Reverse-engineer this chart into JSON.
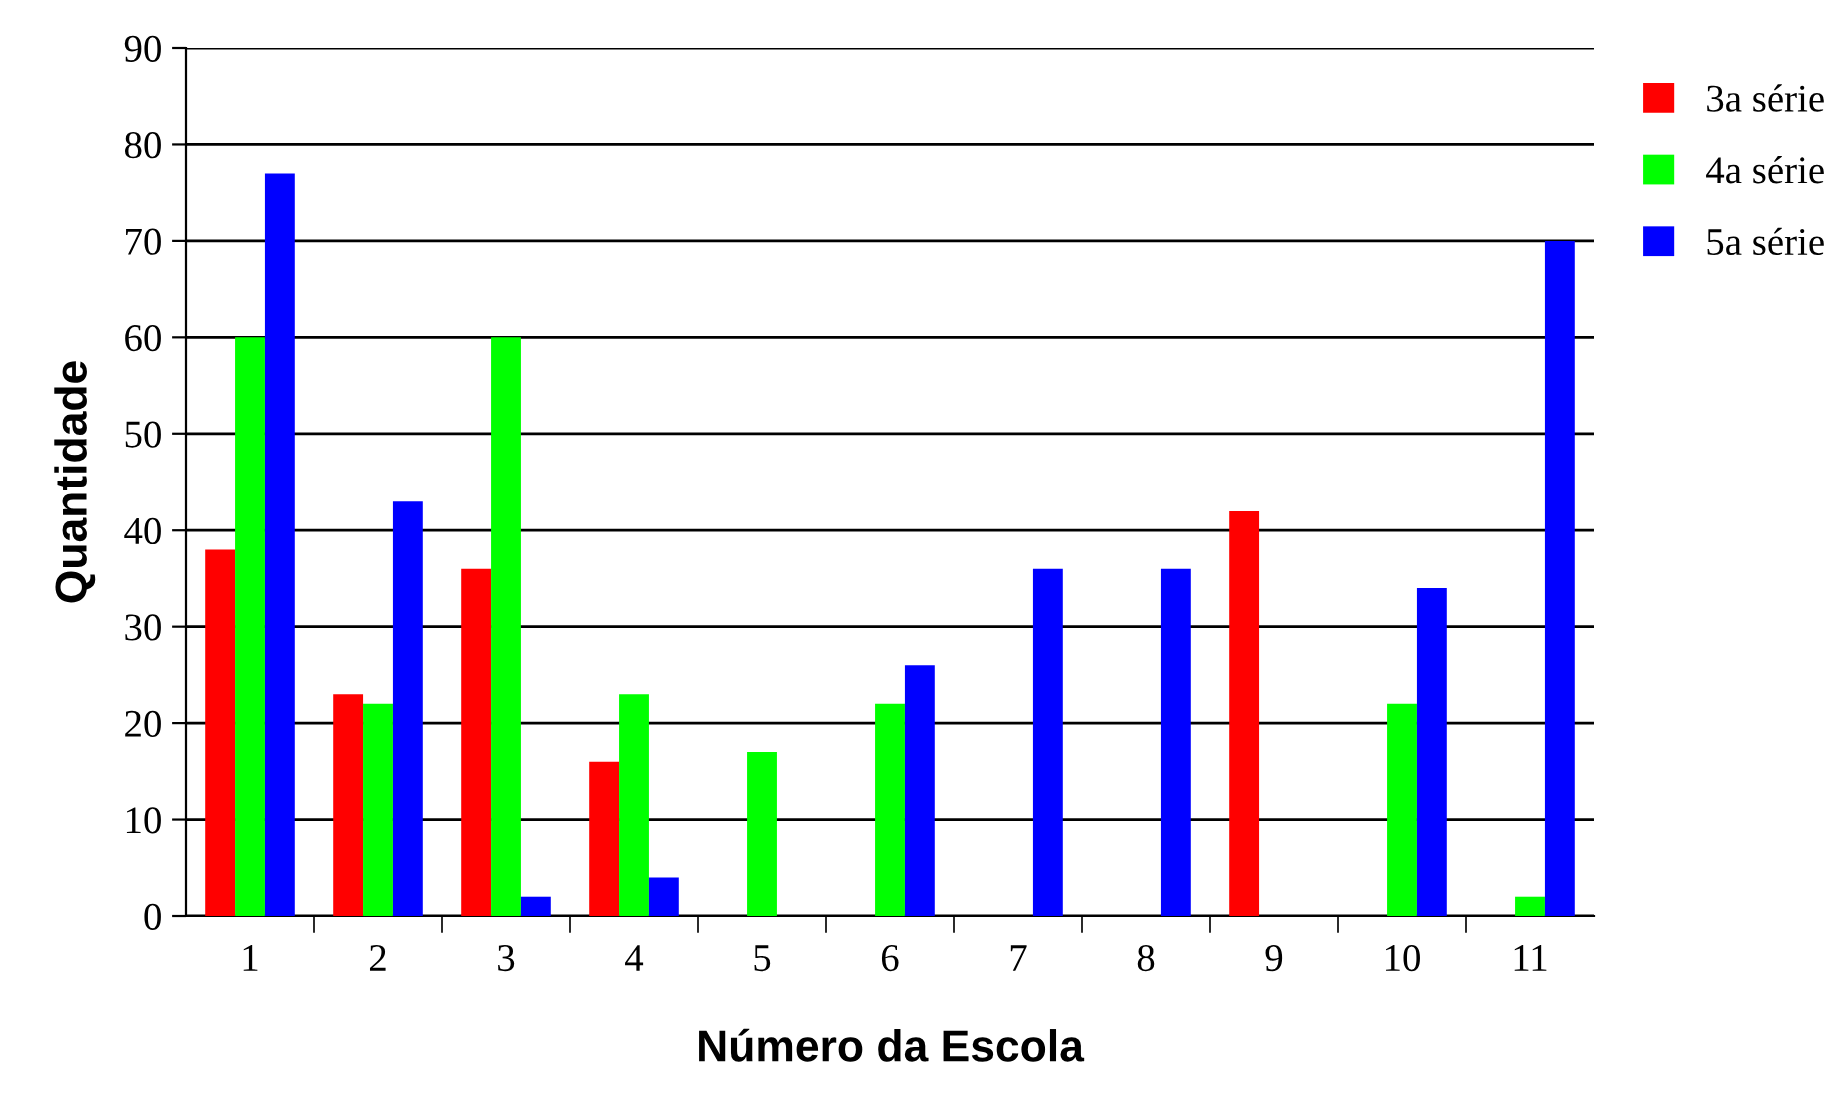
{
  "chart_data": {
    "type": "bar",
    "xlabel": "Número da Escola",
    "ylabel": "Quantidade",
    "categories": [
      "1",
      "2",
      "3",
      "4",
      "5",
      "6",
      "7",
      "8",
      "9",
      "10",
      "11"
    ],
    "series": [
      {
        "name": "3a série",
        "color": "#ff0000",
        "values": [
          38,
          23,
          36,
          16,
          0,
          0,
          0,
          0,
          42,
          0,
          0
        ]
      },
      {
        "name": "4a série",
        "color": "#00ff00",
        "values": [
          60,
          22,
          60,
          23,
          17,
          22,
          0,
          0,
          0,
          22,
          2
        ]
      },
      {
        "name": "5a série",
        "color": "#0000ff",
        "values": [
          77,
          43,
          2,
          4,
          0,
          26,
          36,
          36,
          0,
          34,
          70
        ]
      }
    ],
    "ylim": [
      0,
      90
    ],
    "yticks": [
      0,
      10,
      20,
      30,
      40,
      50,
      60,
      70,
      80,
      90
    ],
    "grid": "y",
    "legend": "top right"
  }
}
